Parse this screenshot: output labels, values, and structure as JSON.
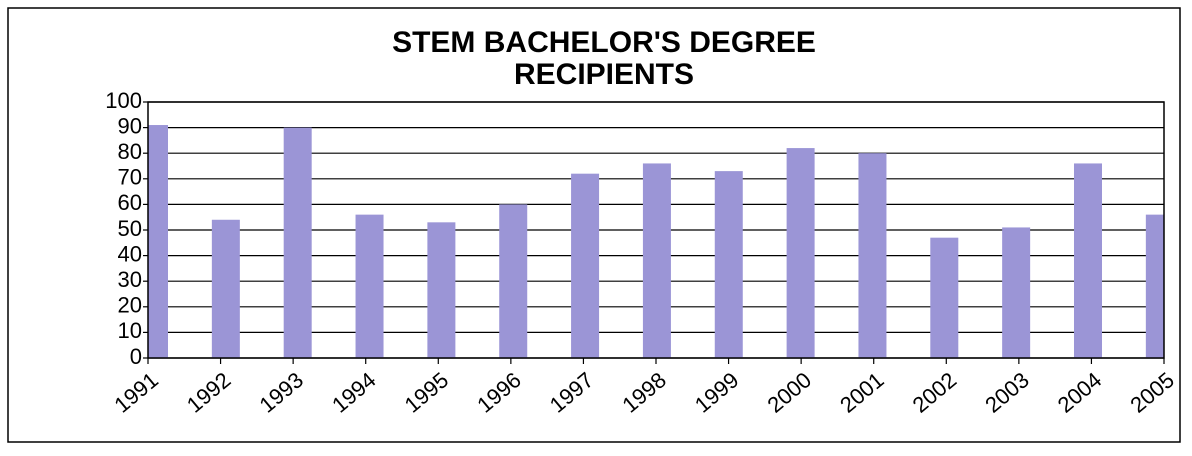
{
  "chart_data": {
    "type": "bar",
    "title": [
      "STEM BACHELOR'S DEGREE",
      "RECIPIENTS"
    ],
    "categories": [
      "1991",
      "1992",
      "1993",
      "1994",
      "1995",
      "1996",
      "1997",
      "1998",
      "1999",
      "2000",
      "2001",
      "2002",
      "2003",
      "2004",
      "2005"
    ],
    "values": [
      91,
      54,
      90,
      56,
      53,
      60,
      72,
      76,
      73,
      82,
      80,
      47,
      51,
      76,
      56
    ],
    "color": "#9b95d6",
    "ylim": [
      0,
      100
    ],
    "yticks": [
      0,
      10,
      20,
      30,
      40,
      50,
      60,
      70,
      80,
      90,
      100
    ],
    "grid": true
  }
}
